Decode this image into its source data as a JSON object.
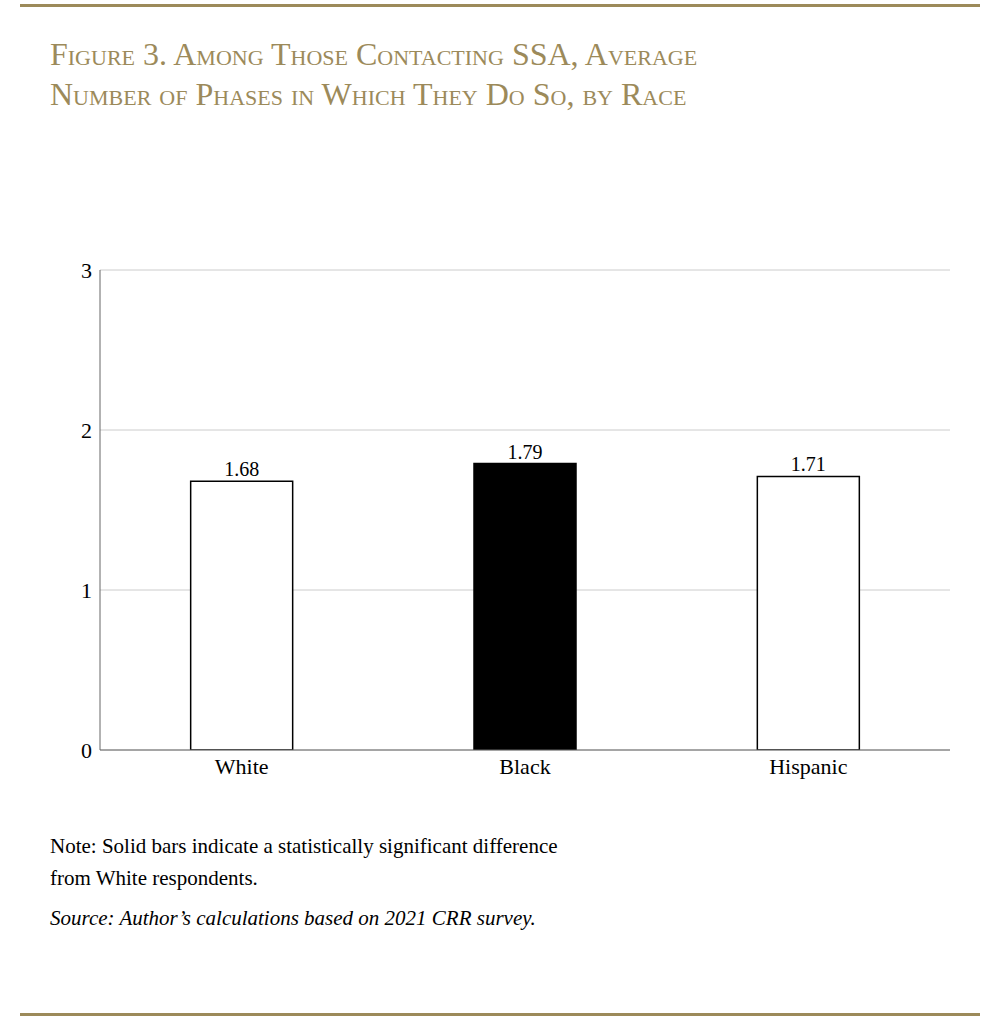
{
  "chart_data": {
    "type": "bar",
    "title": "Figure 3. Among Those Contacting SSA, Average\nNumber of Phases in Which They Do So, by Race",
    "categories": [
      "White",
      "Black",
      "Hispanic"
    ],
    "values": [
      1.68,
      1.79,
      1.71
    ],
    "colors": [
      "#ffffff",
      "#000000",
      "#ffffff"
    ],
    "ylim": [
      0,
      3
    ],
    "yticks": [
      0,
      1,
      2,
      3
    ],
    "grid": true,
    "data_labels": true,
    "annotations": [
      "Note: Solid bars indicate a statistically significant difference",
      "from White respondents.",
      "Source: Author’s calculations based on 2021 CRR survey."
    ]
  }
}
